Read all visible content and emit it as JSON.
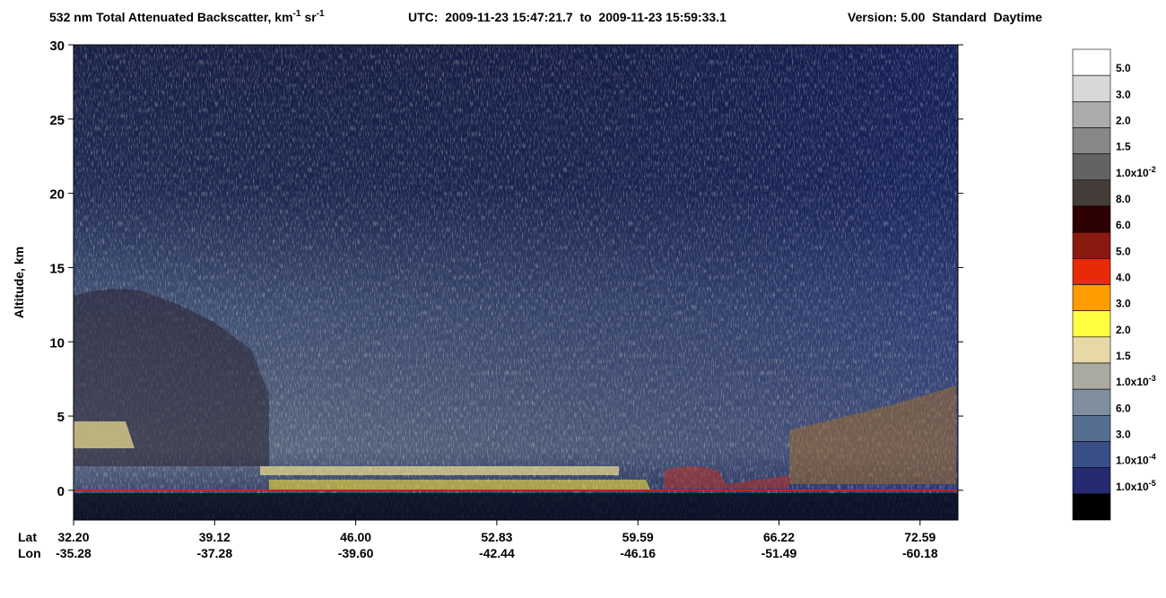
{
  "chart_data": {
    "type": "curtain",
    "title": {
      "main": "532 nm Total Attenuated Backscatter, km",
      "unit1_exp": "-1",
      "unit2": "sr",
      "unit2_exp": "-1",
      "time": "UTC:  2009-11-23 15:47:21.7  to  2009-11-23 15:59:33.1",
      "version": "Version: 5.00  Standard  Daytime"
    },
    "ylabel": "Altitude, km",
    "ylim": [
      -2,
      30
    ],
    "yticks": [
      0,
      5,
      10,
      15,
      20,
      25,
      30
    ],
    "x_row_labels": [
      "Lat",
      "Lon"
    ],
    "lat": [
      "32.20",
      "39.12",
      "46.00",
      "52.83",
      "59.59",
      "66.22",
      "72.59"
    ],
    "lon": [
      "-35.28",
      "-37.28",
      "-39.60",
      "-42.44",
      "-46.16",
      "-51.49",
      "-60.18"
    ],
    "colorbar_colors": [
      "#ffffff",
      "#d8d8d8",
      "#ababab",
      "#878787",
      "#636363",
      "#463c3a",
      "#2e0202",
      "#8a1a10",
      "#e82a08",
      "#ff9c00",
      "#ffff40",
      "#e8d8a8",
      "#aaaaa0",
      "#7f8fa0",
      "#566e90",
      "#3a4f88",
      "#262a70",
      "#000000"
    ],
    "colorbar_labels": [
      "5.0",
      "3.0",
      "2.0",
      "1.5",
      {
        "text": "1.0x10",
        "exp": "-2"
      },
      "8.0",
      "6.0",
      "5.0",
      "4.0",
      "3.0",
      "2.0",
      "1.5",
      {
        "text": "1.0x10",
        "exp": "-3"
      },
      "6.0",
      "3.0",
      {
        "text": "1.0x10",
        "exp": "-4"
      },
      {
        "text": "1.0x10",
        "exp": "-5"
      }
    ]
  }
}
